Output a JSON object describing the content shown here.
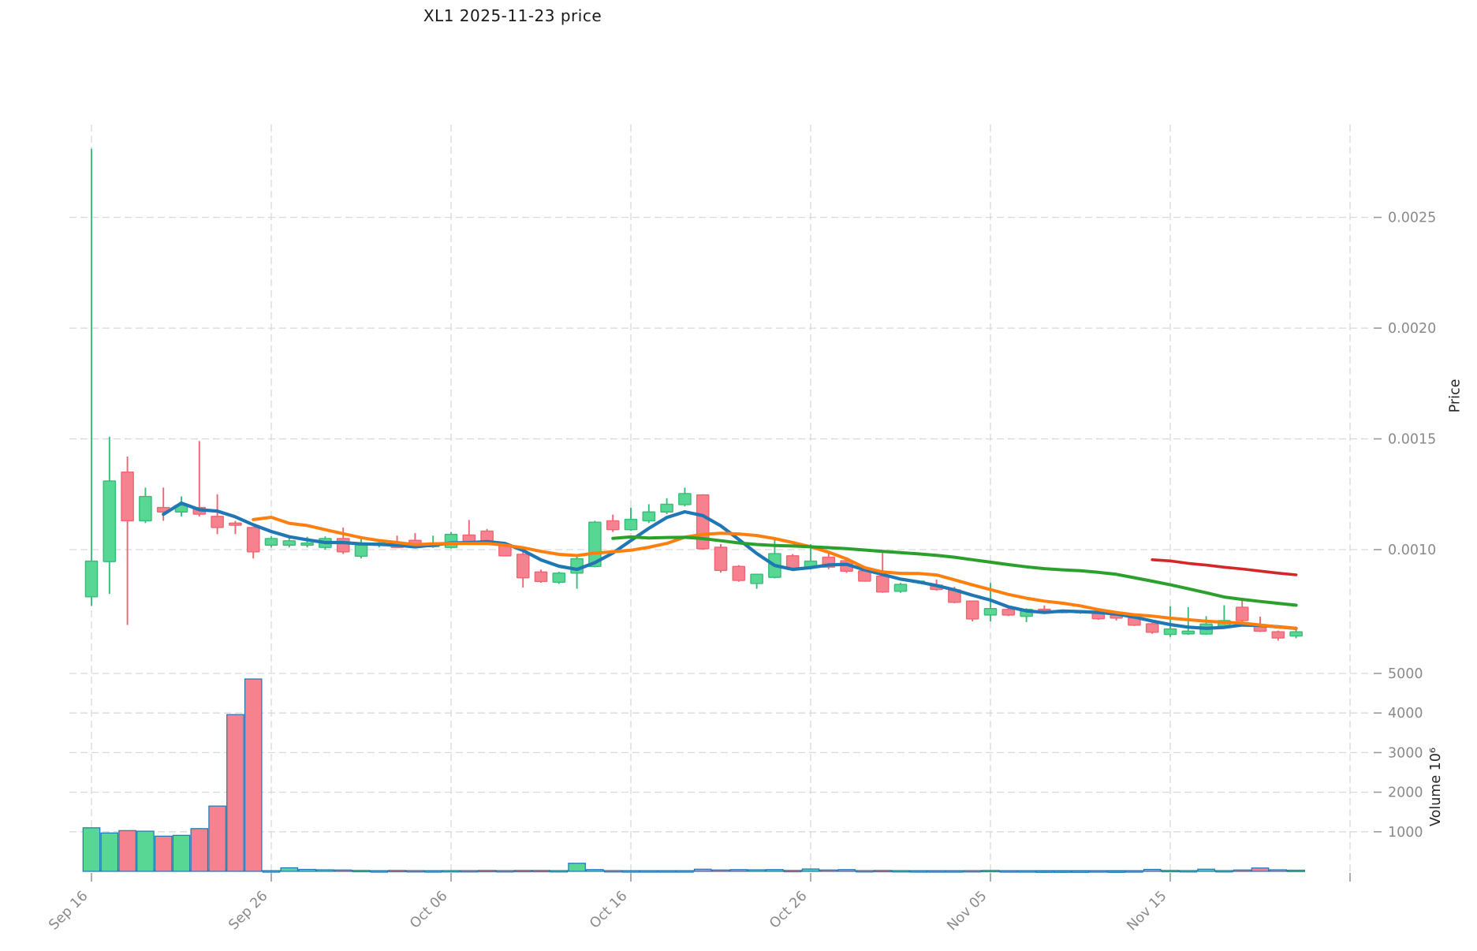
{
  "title": "XL1  2025-11-23  price",
  "axes": {
    "price_label": "Price",
    "volume_label": "Volume  10⁶",
    "price_ticks": [
      {
        "label": "0.0010",
        "value": 0.001
      },
      {
        "label": "0.0015",
        "value": 0.0015
      },
      {
        "label": "0.0020",
        "value": 0.002
      },
      {
        "label": "0.0025",
        "value": 0.0025
      }
    ],
    "volume_ticks": [
      {
        "label": "1000",
        "value": 1000
      },
      {
        "label": "2000",
        "value": 2000
      },
      {
        "label": "3000",
        "value": 3000
      },
      {
        "label": "4000",
        "value": 4000
      },
      {
        "label": "5000",
        "value": 5000
      }
    ],
    "x_ticks": [
      {
        "label": "Sep 16",
        "day": 0
      },
      {
        "label": "Sep 26",
        "day": 10
      },
      {
        "label": "Oct 06",
        "day": 20
      },
      {
        "label": "Oct 16",
        "day": 30
      },
      {
        "label": "Oct 26",
        "day": 40
      },
      {
        "label": "Nov 05",
        "day": 50
      },
      {
        "label": "Nov 15",
        "day": 60
      },
      {
        "label": "",
        "day": 70
      }
    ]
  },
  "colors": {
    "up_fill": "#57d694",
    "up_edge": "#38bd78",
    "down_fill": "#f5828e",
    "down_edge": "#ef6573",
    "volume_edge": "#1f77b4",
    "grid": "#d9d9d9",
    "tick_text": "#8a8a8a",
    "tick_mark": "#9a9a9a",
    "title_text": "#1a1a1a",
    "sma_colors": [
      "#1f77b4",
      "#ff7f0e",
      "#2ca02c",
      "#d62728"
    ]
  },
  "chart_data": {
    "type": "candlestick+volume",
    "title": "XL1  2025-11-23  price",
    "symbol": "XL1",
    "as_of_date": "2025-11-23",
    "price_axis": {
      "ticks": [
        0.001,
        0.0015,
        0.002,
        0.0025
      ],
      "ylabel": "Price"
    },
    "volume_axis": {
      "ticks": [
        1000,
        2000,
        3000,
        4000,
        5000
      ],
      "ylabel": "Volume  10⁶",
      "units": "millions"
    },
    "grid": true,
    "legend_position": "none",
    "moving_average_windows": [
      5,
      10,
      30,
      60
    ],
    "dates": [
      "2025-09-16",
      "2025-09-17",
      "2025-09-18",
      "2025-09-19",
      "2025-09-20",
      "2025-09-21",
      "2025-09-22",
      "2025-09-23",
      "2025-09-24",
      "2025-09-25",
      "2025-09-26",
      "2025-09-27",
      "2025-09-28",
      "2025-09-29",
      "2025-09-30",
      "2025-10-01",
      "2025-10-02",
      "2025-10-03",
      "2025-10-04",
      "2025-10-05",
      "2025-10-06",
      "2025-10-07",
      "2025-10-08",
      "2025-10-09",
      "2025-10-10",
      "2025-10-11",
      "2025-10-12",
      "2025-10-13",
      "2025-10-14",
      "2025-10-15",
      "2025-10-16",
      "2025-10-17",
      "2025-10-18",
      "2025-10-19",
      "2025-10-20",
      "2025-10-21",
      "2025-10-22",
      "2025-10-23",
      "2025-10-24",
      "2025-10-25",
      "2025-10-26",
      "2025-10-27",
      "2025-10-28",
      "2025-10-29",
      "2025-10-30",
      "2025-10-31",
      "2025-11-01",
      "2025-11-02",
      "2025-11-03",
      "2025-11-04",
      "2025-11-05",
      "2025-11-06",
      "2025-11-07",
      "2025-11-08",
      "2025-11-09",
      "2025-11-10",
      "2025-11-11",
      "2025-11-12",
      "2025-11-13",
      "2025-11-14",
      "2025-11-15",
      "2025-11-16",
      "2025-11-17",
      "2025-11-18",
      "2025-11-19",
      "2025-11-20",
      "2025-11-21",
      "2025-11-22"
    ],
    "open": [
      0.000787,
      0.000946,
      0.00135,
      0.00113,
      0.00119,
      0.00117,
      0.00119,
      0.00115,
      0.00112,
      0.0011,
      0.00102,
      0.00102,
      0.00102,
      0.00101,
      0.00105,
      0.00097,
      0.00102,
      0.00103,
      0.001042,
      0.001013,
      0.00101,
      0.001066,
      0.001084,
      0.001019,
      0.000979,
      0.000899,
      0.000853,
      0.000894,
      0.000924,
      0.00113,
      0.00109,
      0.00113,
      0.00117,
      0.001203,
      0.001247,
      0.001011,
      0.000924,
      0.000847,
      0.000875,
      0.000972,
      0.000918,
      0.000966,
      0.00095,
      0.000904,
      0.00088,
      0.000812,
      0.000852,
      0.00084,
      0.000818,
      0.000768,
      0.000705,
      0.00073,
      0.000699,
      0.000731,
      0.000722,
      0.000715,
      0.000712,
      0.000703,
      0.000691,
      0.000665,
      0.000617,
      0.00062,
      0.000619,
      0.000653,
      0.00074,
      0.000662,
      0.000629,
      0.00061
    ],
    "high": [
      0.00281,
      0.00151,
      0.00142,
      0.00128,
      0.00128,
      0.00124,
      0.00149,
      0.00125,
      0.00113,
      0.0011,
      0.00106,
      0.00106,
      0.001058,
      0.00106,
      0.0011,
      0.00106,
      0.001035,
      0.001063,
      0.001075,
      0.001063,
      0.00108,
      0.001134,
      0.001093,
      0.00103,
      0.00099,
      0.00091,
      0.0009,
      0.000975,
      0.00113,
      0.001158,
      0.00119,
      0.001205,
      0.001232,
      0.00128,
      0.00125,
      0.001025,
      0.00093,
      0.00089,
      0.001049,
      0.00098,
      0.001025,
      0.00099,
      0.000961,
      0.00091,
      0.000992,
      0.00085,
      0.000862,
      0.000865,
      0.000832,
      0.00077,
      0.00085,
      0.00074,
      0.000735,
      0.000748,
      0.000728,
      0.000726,
      0.000718,
      0.000712,
      0.0007,
      0.00067,
      0.000744,
      0.00074,
      0.0007,
      0.000749,
      0.000776,
      0.000697,
      0.000635,
      0.00064
    ],
    "low": [
      0.000746,
      0.0008,
      0.00066,
      0.00112,
      0.00113,
      0.00115,
      0.00115,
      0.00107,
      0.00107,
      0.00096,
      0.00101,
      0.00101,
      0.00101,
      0.001,
      0.00098,
      0.00096,
      0.00101,
      0.00101,
      0.00102,
      0.001008,
      0.001005,
      0.001025,
      0.001031,
      0.00097,
      0.000829,
      0.00085,
      0.000845,
      0.000823,
      0.00092,
      0.00108,
      0.001085,
      0.00112,
      0.00116,
      0.001195,
      0.001,
      0.000896,
      0.000855,
      0.000823,
      0.00087,
      0.000905,
      0.00091,
      0.000912,
      0.000895,
      0.000855,
      0.000805,
      0.000805,
      0.000845,
      0.000815,
      0.000758,
      0.000676,
      0.000676,
      0.0007,
      0.000673,
      0.000712,
      0.000712,
      0.00071,
      0.000683,
      0.00068,
      0.000655,
      0.00062,
      0.000606,
      0.000615,
      0.000615,
      0.000648,
      0.000675,
      0.000628,
      0.000589,
      0.0006
    ],
    "close": [
      0.000948,
      0.00131,
      0.00113,
      0.00124,
      0.00117,
      0.0012,
      0.00116,
      0.0011,
      0.00111,
      0.00099,
      0.00105,
      0.00104,
      0.00103,
      0.00105,
      0.00099,
      0.00102,
      0.00103,
      0.00101,
      0.001013,
      0.00103,
      0.001069,
      0.001037,
      0.001031,
      0.000972,
      0.000873,
      0.000856,
      0.000894,
      0.000959,
      0.001124,
      0.00109,
      0.001137,
      0.00117,
      0.001205,
      0.001253,
      0.001004,
      0.000906,
      0.000861,
      0.000889,
      0.000982,
      0.000915,
      0.000948,
      0.000921,
      0.000903,
      0.000858,
      0.000809,
      0.000843,
      0.000858,
      0.00082,
      0.000762,
      0.000687,
      0.000734,
      0.000705,
      0.00073,
      0.000726,
      0.000718,
      0.000722,
      0.000688,
      0.000691,
      0.000659,
      0.000627,
      0.000642,
      0.000632,
      0.000664,
      0.00068,
      0.00068,
      0.000632,
      0.000601,
      0.000629
    ],
    "volume_millions": [
      1100,
      970,
      1030,
      1015,
      890,
      910,
      1080,
      1650,
      3960,
      4860,
      15,
      90,
      50,
      40,
      35,
      25,
      15,
      25,
      20,
      15,
      20,
      20,
      25,
      20,
      25,
      25,
      20,
      205,
      45,
      20,
      15,
      15,
      15,
      15,
      55,
      35,
      45,
      40,
      45,
      25,
      60,
      35,
      45,
      20,
      25,
      20,
      15,
      15,
      15,
      20,
      25,
      15,
      15,
      10,
      10,
      10,
      15,
      10,
      15,
      50,
      25,
      20,
      55,
      20,
      35,
      85,
      40,
      30
    ]
  }
}
